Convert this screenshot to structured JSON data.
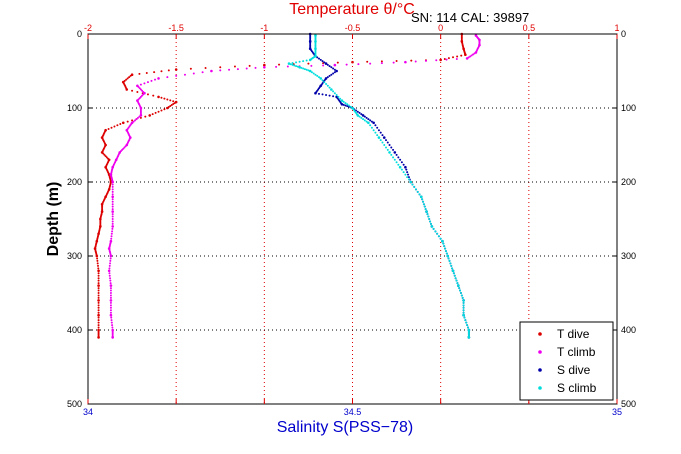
{
  "chart_data": {
    "type": "scatter",
    "annotation": "SN: 114  CAL: 39897",
    "top_axis": {
      "label": "Temperature θ/°C",
      "range": [
        -2,
        1
      ],
      "ticks": [
        "-2",
        "-1.5",
        "-1",
        "-0.5",
        "0",
        "0.5",
        "1"
      ],
      "tick_values": [
        -2,
        -1.5,
        -1,
        -0.5,
        0,
        0.5,
        1
      ],
      "color": "#e00000"
    },
    "bottom_axis": {
      "label": "Salinity S(PSS−78)",
      "range": [
        34,
        35
      ],
      "ticks": [
        "34",
        "34.5",
        "35"
      ],
      "tick_values": [
        34,
        34.5,
        35
      ],
      "color": "#0000cc"
    },
    "y_axis": {
      "label": "Depth (m)",
      "range": [
        0,
        500
      ],
      "reversed": true,
      "ticks": [
        "0",
        "100",
        "200",
        "300",
        "400",
        "500"
      ],
      "tick_values": [
        0,
        100,
        200,
        300,
        400,
        500
      ]
    },
    "grid": true,
    "legend_position": "bottom-right",
    "series": [
      {
        "name": "T dive",
        "axis": "temperature",
        "color": "#dd0000",
        "points": [
          [
            0.12,
            0
          ],
          [
            0.12,
            10
          ],
          [
            0.13,
            20
          ],
          [
            0.14,
            28
          ],
          [
            0.0,
            35
          ],
          [
            -0.5,
            38
          ],
          [
            -1.0,
            42
          ],
          [
            -1.5,
            48
          ],
          [
            -1.75,
            55
          ],
          [
            -1.8,
            65
          ],
          [
            -1.78,
            75
          ],
          [
            -1.6,
            85
          ],
          [
            -1.5,
            92
          ],
          [
            -1.55,
            100
          ],
          [
            -1.65,
            110
          ],
          [
            -1.8,
            120
          ],
          [
            -1.9,
            130
          ],
          [
            -1.92,
            140
          ],
          [
            -1.9,
            150
          ],
          [
            -1.92,
            160
          ],
          [
            -1.88,
            170
          ],
          [
            -1.9,
            180
          ],
          [
            -1.88,
            190
          ],
          [
            -1.87,
            200
          ],
          [
            -1.88,
            210
          ],
          [
            -1.9,
            220
          ],
          [
            -1.92,
            230
          ],
          [
            -1.92,
            240
          ],
          [
            -1.93,
            250
          ],
          [
            -1.93,
            260
          ],
          [
            -1.94,
            270
          ],
          [
            -1.95,
            280
          ],
          [
            -1.96,
            290
          ],
          [
            -1.95,
            300
          ],
          [
            -1.94,
            320
          ],
          [
            -1.94,
            340
          ],
          [
            -1.94,
            360
          ],
          [
            -1.94,
            380
          ],
          [
            -1.94,
            400
          ],
          [
            -1.94,
            410
          ]
        ]
      },
      {
        "name": "T climb",
        "axis": "temperature",
        "color": "#ee00ee",
        "points": [
          [
            -1.86,
            410
          ],
          [
            -1.86,
            400
          ],
          [
            -1.87,
            380
          ],
          [
            -1.87,
            360
          ],
          [
            -1.87,
            340
          ],
          [
            -1.88,
            320
          ],
          [
            -1.87,
            300
          ],
          [
            -1.88,
            290
          ],
          [
            -1.87,
            280
          ],
          [
            -1.86,
            260
          ],
          [
            -1.86,
            240
          ],
          [
            -1.86,
            220
          ],
          [
            -1.86,
            200
          ],
          [
            -1.87,
            190
          ],
          [
            -1.86,
            180
          ],
          [
            -1.84,
            170
          ],
          [
            -1.82,
            160
          ],
          [
            -1.78,
            150
          ],
          [
            -1.76,
            140
          ],
          [
            -1.78,
            130
          ],
          [
            -1.75,
            120
          ],
          [
            -1.7,
            110
          ],
          [
            -1.7,
            100
          ],
          [
            -1.72,
            90
          ],
          [
            -1.68,
            80
          ],
          [
            -1.72,
            70
          ],
          [
            -1.6,
            60
          ],
          [
            -1.3,
            50
          ],
          [
            -1.0,
            45
          ],
          [
            -0.6,
            42
          ],
          [
            -0.2,
            38
          ],
          [
            0.15,
            33
          ],
          [
            0.2,
            25
          ],
          [
            0.22,
            15
          ],
          [
            0.22,
            8
          ],
          [
            0.2,
            2
          ]
        ]
      },
      {
        "name": "S dive",
        "axis": "salinity",
        "color": "#0000aa",
        "points": [
          [
            34.42,
            0
          ],
          [
            34.42,
            10
          ],
          [
            34.42,
            20
          ],
          [
            34.43,
            30
          ],
          [
            34.45,
            40
          ],
          [
            34.47,
            50
          ],
          [
            34.45,
            60
          ],
          [
            34.44,
            70
          ],
          [
            34.43,
            80
          ],
          [
            34.47,
            85
          ],
          [
            34.48,
            95
          ],
          [
            34.5,
            100
          ],
          [
            34.52,
            110
          ],
          [
            34.54,
            120
          ],
          [
            34.56,
            140
          ],
          [
            34.58,
            160
          ],
          [
            34.6,
            180
          ],
          [
            34.61,
            200
          ],
          [
            34.63,
            220
          ],
          [
            34.64,
            240
          ],
          [
            34.65,
            260
          ],
          [
            34.67,
            280
          ],
          [
            34.68,
            300
          ],
          [
            34.69,
            320
          ],
          [
            34.7,
            340
          ],
          [
            34.71,
            360
          ],
          [
            34.71,
            380
          ],
          [
            34.72,
            400
          ],
          [
            34.72,
            410
          ]
        ]
      },
      {
        "name": "S climb",
        "axis": "salinity",
        "color": "#00dddd",
        "points": [
          [
            34.72,
            410
          ],
          [
            34.72,
            400
          ],
          [
            34.71,
            380
          ],
          [
            34.71,
            360
          ],
          [
            34.7,
            340
          ],
          [
            34.69,
            320
          ],
          [
            34.68,
            300
          ],
          [
            34.67,
            280
          ],
          [
            34.65,
            260
          ],
          [
            34.64,
            240
          ],
          [
            34.63,
            220
          ],
          [
            34.61,
            200
          ],
          [
            34.59,
            180
          ],
          [
            34.57,
            160
          ],
          [
            34.55,
            140
          ],
          [
            34.53,
            120
          ],
          [
            34.51,
            110
          ],
          [
            34.5,
            100
          ],
          [
            34.48,
            90
          ],
          [
            34.46,
            75
          ],
          [
            34.44,
            60
          ],
          [
            34.42,
            50
          ],
          [
            34.4,
            45
          ],
          [
            34.38,
            40
          ],
          [
            34.42,
            35
          ],
          [
            34.43,
            30
          ],
          [
            34.43,
            20
          ],
          [
            34.43,
            10
          ],
          [
            34.43,
            2
          ]
        ]
      }
    ]
  }
}
